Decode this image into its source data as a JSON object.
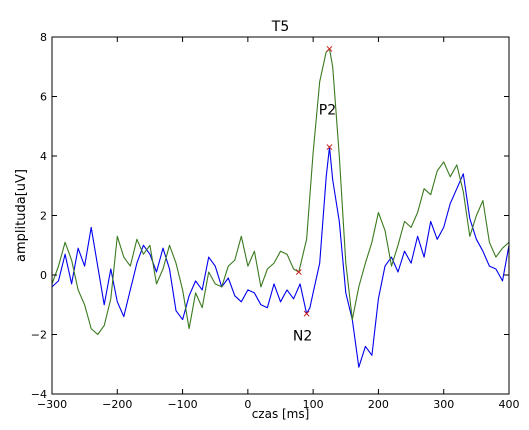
{
  "chart_data": {
    "type": "line",
    "title": "T5",
    "xlabel": "czas [ms]",
    "ylabel": "amplituda[uV]",
    "xlim": [
      -300,
      400
    ],
    "ylim": [
      -4,
      8
    ],
    "xticks": [
      -300,
      -200,
      -100,
      0,
      100,
      200,
      300,
      400
    ],
    "yticks": [
      -4,
      -2,
      0,
      2,
      4,
      6,
      8
    ],
    "grid": false,
    "colors": {
      "series1": "#0000ee",
      "series2": "#3a7a1e",
      "marker": "#cc2222"
    },
    "series": [
      {
        "color": "#0000ee",
        "x": [
          -300,
          -290,
          -280,
          -270,
          -260,
          -250,
          -240,
          -230,
          -220,
          -210,
          -200,
          -190,
          -180,
          -170,
          -160,
          -150,
          -140,
          -130,
          -120,
          -110,
          -100,
          -90,
          -80,
          -70,
          -60,
          -50,
          -40,
          -30,
          -20,
          -10,
          0,
          10,
          20,
          30,
          40,
          50,
          60,
          70,
          80,
          90,
          95,
          100,
          110,
          120,
          125,
          130,
          140,
          150,
          160,
          170,
          180,
          190,
          200,
          210,
          220,
          230,
          240,
          250,
          260,
          270,
          280,
          290,
          300,
          310,
          320,
          330,
          340,
          350,
          360,
          370,
          380,
          390,
          400
        ],
        "y": [
          -0.4,
          -0.2,
          0.7,
          -0.3,
          0.9,
          0.3,
          1.6,
          0.3,
          -1.0,
          0.2,
          -0.9,
          -1.4,
          -0.5,
          0.4,
          1.0,
          0.7,
          0.1,
          0.9,
          0.2,
          -1.2,
          -1.5,
          -0.7,
          -0.2,
          -0.5,
          0.6,
          0.3,
          -0.4,
          -0.1,
          -0.7,
          -0.9,
          -0.5,
          -0.6,
          -1.0,
          -1.1,
          -0.3,
          -0.9,
          -0.5,
          -0.8,
          -0.3,
          -1.3,
          -1.1,
          -0.6,
          0.4,
          3.3,
          4.3,
          3.2,
          1.8,
          -0.6,
          -1.5,
          -3.1,
          -2.4,
          -2.7,
          -0.8,
          0.3,
          0.6,
          0.1,
          0.8,
          0.4,
          1.3,
          0.6,
          1.8,
          1.2,
          1.6,
          2.4,
          2.9,
          3.4,
          1.9,
          1.2,
          0.8,
          0.3,
          0.2,
          -0.2,
          1.0
        ]
      },
      {
        "color": "#3a7a1e",
        "x": [
          -300,
          -290,
          -280,
          -270,
          -260,
          -250,
          -240,
          -230,
          -220,
          -210,
          -200,
          -190,
          -180,
          -170,
          -160,
          -150,
          -140,
          -130,
          -120,
          -110,
          -100,
          -90,
          -80,
          -70,
          -60,
          -50,
          -40,
          -30,
          -20,
          -10,
          0,
          10,
          20,
          30,
          40,
          50,
          60,
          70,
          78,
          90,
          100,
          110,
          120,
          125,
          130,
          140,
          150,
          160,
          170,
          180,
          190,
          200,
          210,
          220,
          230,
          240,
          250,
          260,
          270,
          280,
          290,
          300,
          310,
          320,
          330,
          340,
          350,
          360,
          370,
          380,
          390,
          400
        ],
        "y": [
          -0.3,
          0.3,
          1.1,
          0.5,
          -0.5,
          -1.0,
          -1.8,
          -2.0,
          -1.7,
          -0.8,
          1.3,
          0.6,
          0.3,
          1.2,
          0.7,
          1.0,
          -0.3,
          0.2,
          1.0,
          0.4,
          -0.5,
          -1.8,
          -0.6,
          -1.1,
          0.1,
          -0.3,
          -0.4,
          0.3,
          0.5,
          1.3,
          0.3,
          0.8,
          -0.4,
          0.2,
          0.4,
          0.8,
          0.7,
          0.2,
          0.1,
          1.2,
          4.1,
          6.5,
          7.5,
          7.6,
          7.0,
          4.0,
          0.4,
          -1.5,
          -0.4,
          0.4,
          1.1,
          2.1,
          1.5,
          0.3,
          1.0,
          1.8,
          1.6,
          2.1,
          2.9,
          2.7,
          3.5,
          3.8,
          3.3,
          3.7,
          2.8,
          1.3,
          2.0,
          2.5,
          1.1,
          0.6,
          0.9,
          1.1
        ]
      }
    ],
    "peaks": [
      {
        "label": "P2",
        "x": 125,
        "y": 7.6,
        "marker_only_x": 125,
        "marker_only_y": 4.3
      },
      {
        "label": "N2",
        "x": 90,
        "y": -1.3,
        "marker_only_x": 78,
        "marker_only_y": 0.1
      }
    ]
  }
}
